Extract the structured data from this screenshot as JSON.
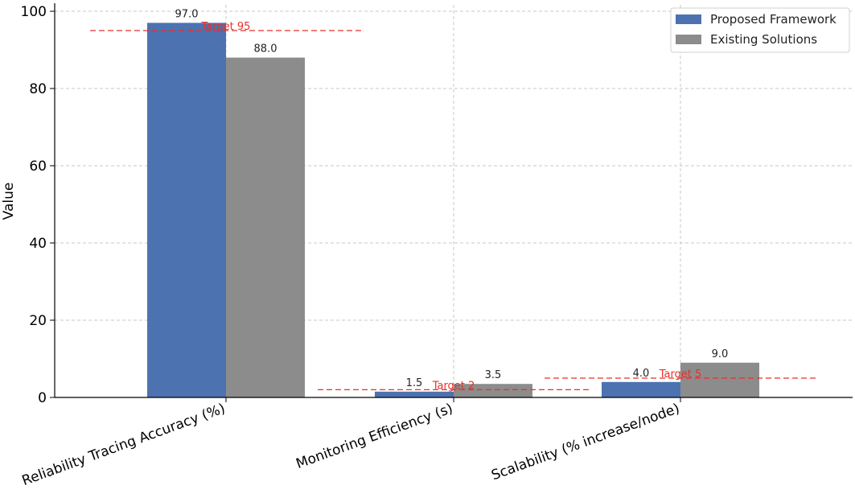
{
  "chart_data": {
    "type": "bar",
    "categories": [
      "Reliability Tracing Accuracy (%)",
      "Monitoring Efficiency (s)",
      "Scalability (% increase/node)"
    ],
    "series": [
      {
        "name": "Proposed Framework",
        "values": [
          97.0,
          1.5,
          4.0
        ],
        "color": "#4c72b0"
      },
      {
        "name": "Existing Solutions",
        "values": [
          88.0,
          3.5,
          9.0
        ],
        "color": "#8c8c8c"
      }
    ],
    "targets": [
      {
        "label": "Target 95",
        "value": 95
      },
      {
        "label": "Target 2",
        "value": 2
      },
      {
        "label": "Target 5",
        "value": 5
      }
    ],
    "target_color": "#e8302a",
    "xlabel": "",
    "ylabel": "Value",
    "ylim": [
      0,
      100
    ],
    "yticks": [
      0,
      20,
      40,
      60,
      80,
      100
    ],
    "data_label_format": "one_decimal",
    "grid": true,
    "legend_position": "top-right"
  }
}
